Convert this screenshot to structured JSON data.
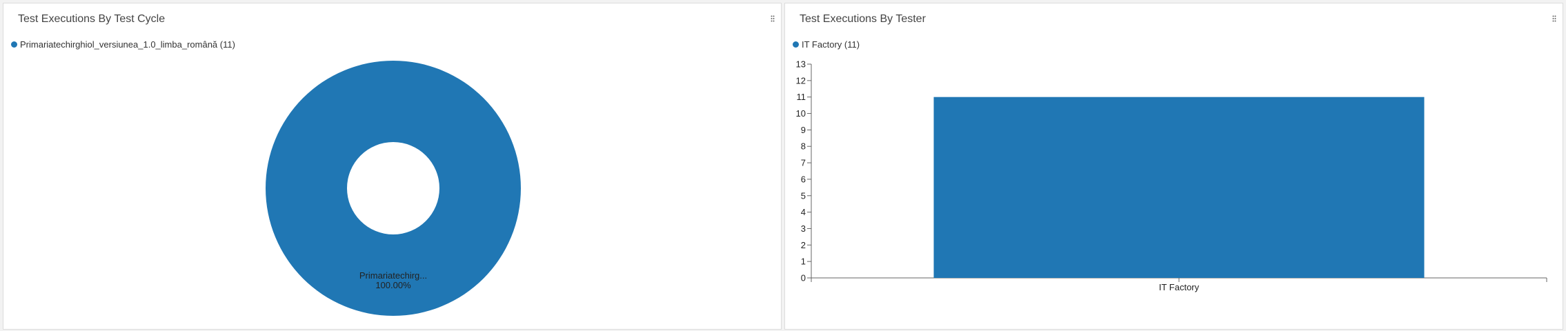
{
  "panels": {
    "left": {
      "title": "Test Executions By Test Cycle",
      "legend": [
        {
          "label": "Primariatechirghiol_versiunea_1.0_limba_română (11)",
          "color": "#2077b4"
        }
      ]
    },
    "right": {
      "title": "Test Executions By Tester",
      "legend": [
        {
          "label": "IT Factory (11)",
          "color": "#2077b4"
        }
      ]
    }
  },
  "chart_data": [
    {
      "type": "pie",
      "donut": true,
      "title": "Test Executions By Test Cycle",
      "slices": [
        {
          "label": "Primariatechirghiol_versiunea_1.0_limba_română",
          "short_label": "Primariatechirg...",
          "value": 11,
          "percent_label": "100.00%",
          "color": "#2077b4"
        }
      ],
      "legend_position": "top-left"
    },
    {
      "type": "bar",
      "title": "Test Executions By Tester",
      "categories": [
        "IT Factory"
      ],
      "values": [
        11
      ],
      "color": "#2077b4",
      "xlabel": "",
      "ylabel": "",
      "ylim": [
        0,
        13
      ],
      "yticks": [
        "0",
        "1",
        "2",
        "3",
        "4",
        "5",
        "6",
        "7",
        "8",
        "9",
        "10",
        "11",
        "12",
        "13"
      ],
      "grid": false,
      "legend_position": "top-left"
    }
  ]
}
